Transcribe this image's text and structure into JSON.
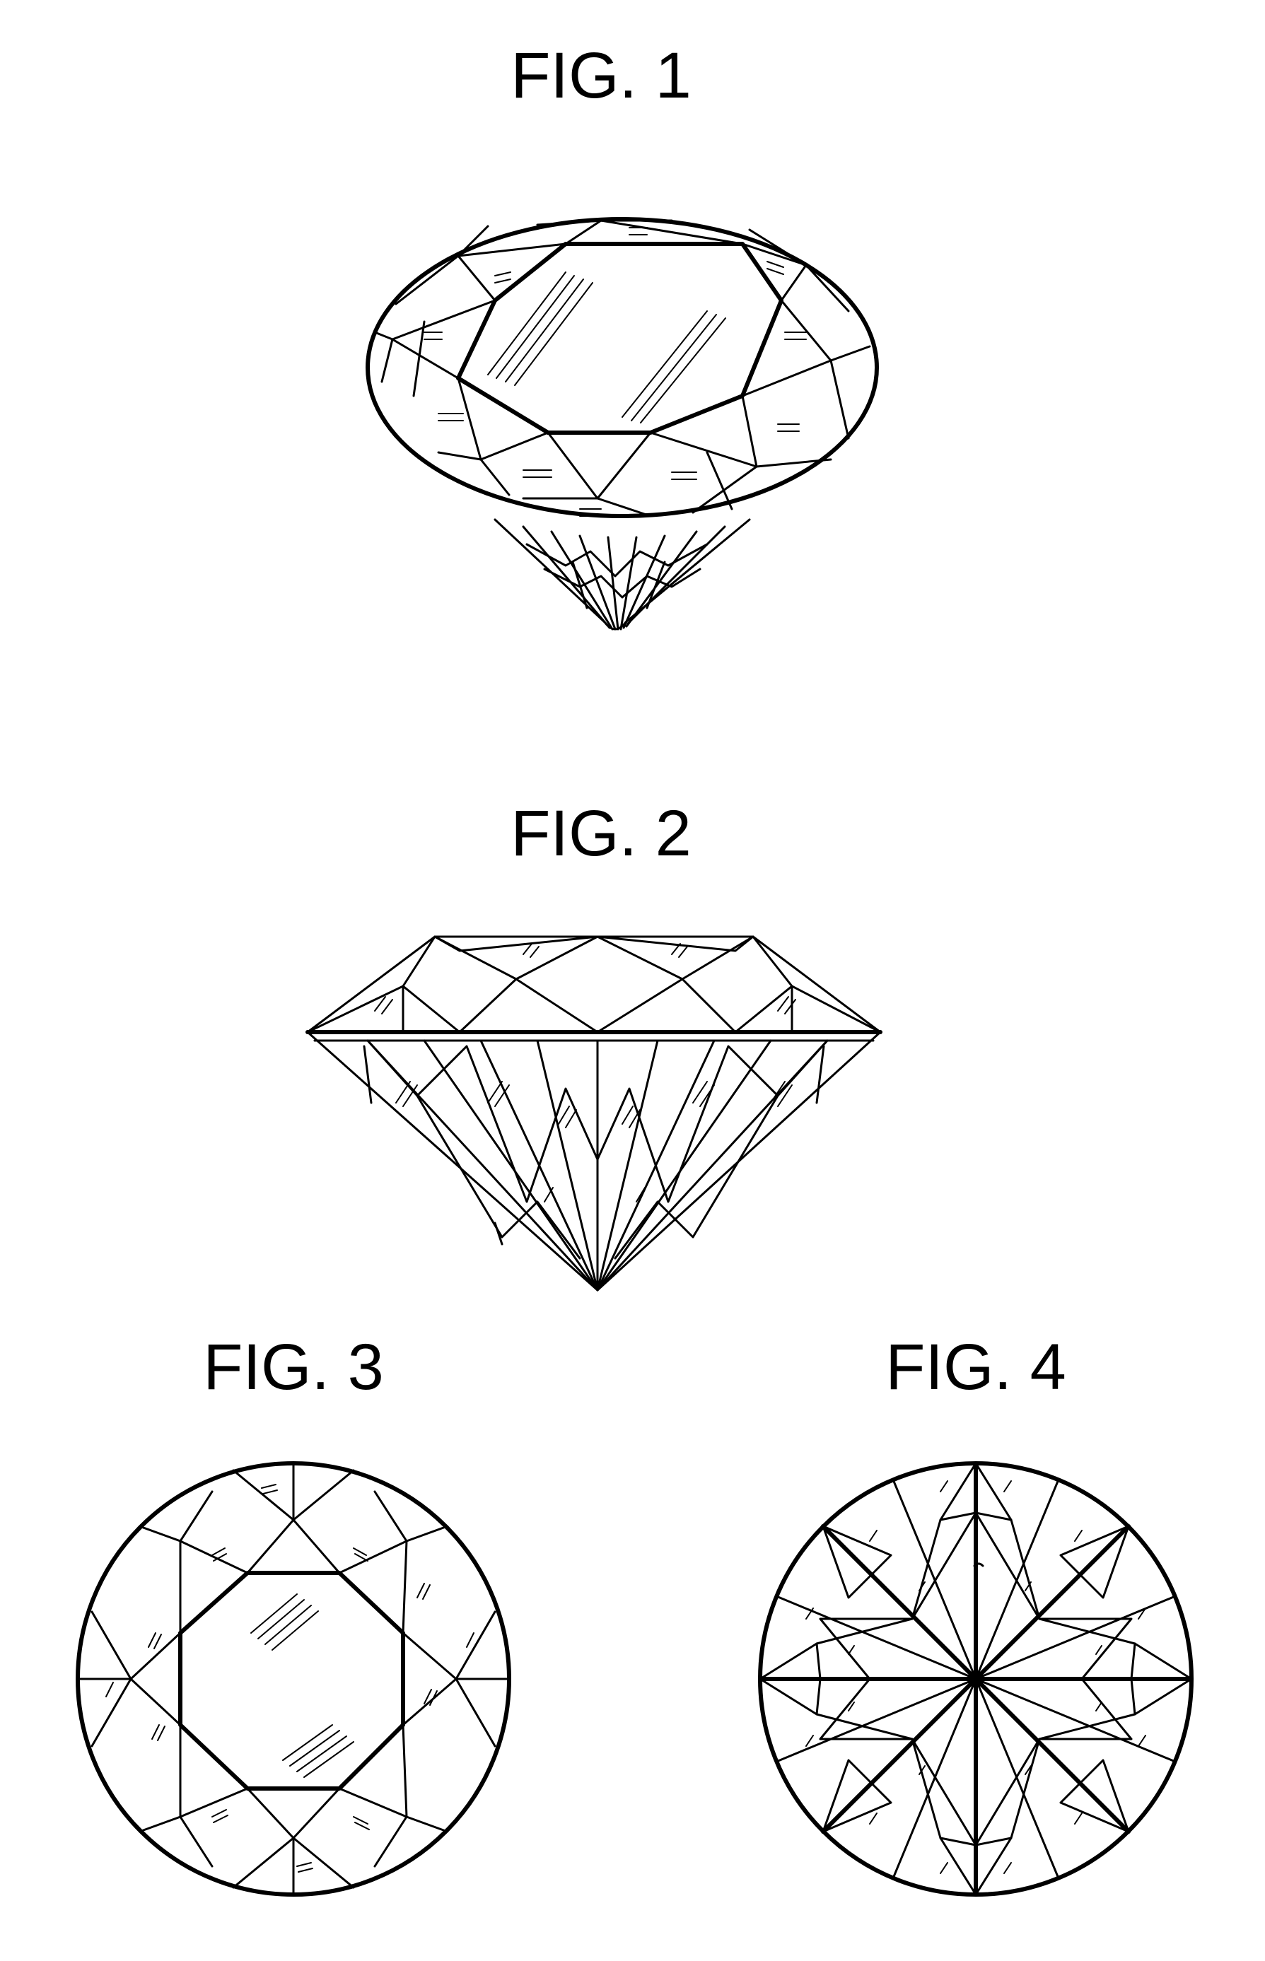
{
  "figures": [
    {
      "label": "FIG. 1"
    },
    {
      "label": "FIG. 2"
    },
    {
      "label": "FIG. 3"
    },
    {
      "label": "FIG. 4"
    }
  ]
}
